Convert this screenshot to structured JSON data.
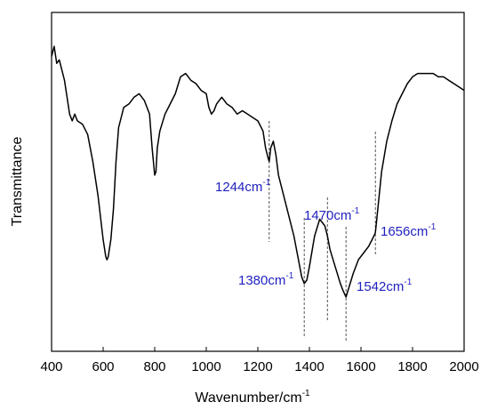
{
  "chart_data": {
    "type": "line",
    "title": "",
    "xlabel": "Wavenumber/cm",
    "xlabel_sup": "-1",
    "ylabel": "Transmittance",
    "xlim": [
      400,
      2000
    ],
    "ylim": [
      0,
      100
    ],
    "y_ticks_shown": false,
    "x_ticks": [
      400,
      600,
      800,
      1000,
      1200,
      1400,
      1600,
      1800,
      2000
    ],
    "grid": false,
    "legend": "none",
    "line_color": "#000000",
    "annotation_color": "#1f1fbf",
    "series": [
      {
        "x": [
          400,
          410,
          420,
          430,
          440,
          450,
          460,
          470,
          480,
          490,
          500,
          520,
          540,
          560,
          580,
          600,
          610,
          615,
          620,
          630,
          640,
          650,
          660,
          680,
          700,
          720,
          740,
          760,
          780,
          790,
          800,
          805,
          810,
          820,
          840,
          860,
          880,
          900,
          920,
          940,
          960,
          980,
          1000,
          1010,
          1020,
          1030,
          1040,
          1050,
          1060,
          1080,
          1100,
          1120,
          1140,
          1160,
          1180,
          1200,
          1220,
          1230,
          1240,
          1244,
          1250,
          1260,
          1270,
          1280,
          1300,
          1320,
          1340,
          1360,
          1370,
          1380,
          1390,
          1400,
          1420,
          1440,
          1460,
          1470,
          1480,
          1500,
          1520,
          1530,
          1542,
          1550,
          1570,
          1590,
          1610,
          1630,
          1650,
          1656,
          1660,
          1680,
          1700,
          1720,
          1740,
          1760,
          1780,
          1800,
          1820,
          1840,
          1860,
          1880,
          1900,
          1920,
          1940,
          1960,
          1980,
          2000
        ],
        "y": [
          87,
          90,
          85,
          86,
          83,
          80,
          75,
          70,
          68,
          70,
          68,
          67,
          64,
          56,
          46,
          33,
          28,
          27,
          28,
          33,
          42,
          56,
          66,
          72,
          73,
          75,
          76,
          74,
          70,
          60,
          52,
          53,
          60,
          65,
          70,
          73,
          76,
          81,
          82,
          80,
          79,
          77,
          76,
          72,
          70,
          71,
          73,
          74,
          75,
          73,
          72,
          70,
          71,
          70,
          69,
          68,
          65,
          60,
          57,
          56,
          60,
          62,
          58,
          52,
          46,
          40,
          34,
          26,
          22,
          20,
          21,
          25,
          34,
          39,
          37,
          34,
          30,
          25,
          20,
          18,
          16,
          18,
          23,
          27,
          29,
          31,
          34,
          35,
          38,
          53,
          62,
          68,
          73,
          76,
          79,
          81,
          82,
          82,
          82,
          82,
          81,
          81,
          80,
          79,
          78,
          77
        ]
      }
    ],
    "annotations": [
      {
        "label": "1244cm",
        "sup": "-1",
        "x": 1244
      },
      {
        "label": "1380cm",
        "sup": "-1",
        "x": 1380
      },
      {
        "label": "1470cm",
        "sup": "-1",
        "x": 1470
      },
      {
        "label": "1542cm",
        "sup": "-1",
        "x": 1542
      },
      {
        "label": "1656cm",
        "sup": "-1",
        "x": 1656
      }
    ]
  }
}
